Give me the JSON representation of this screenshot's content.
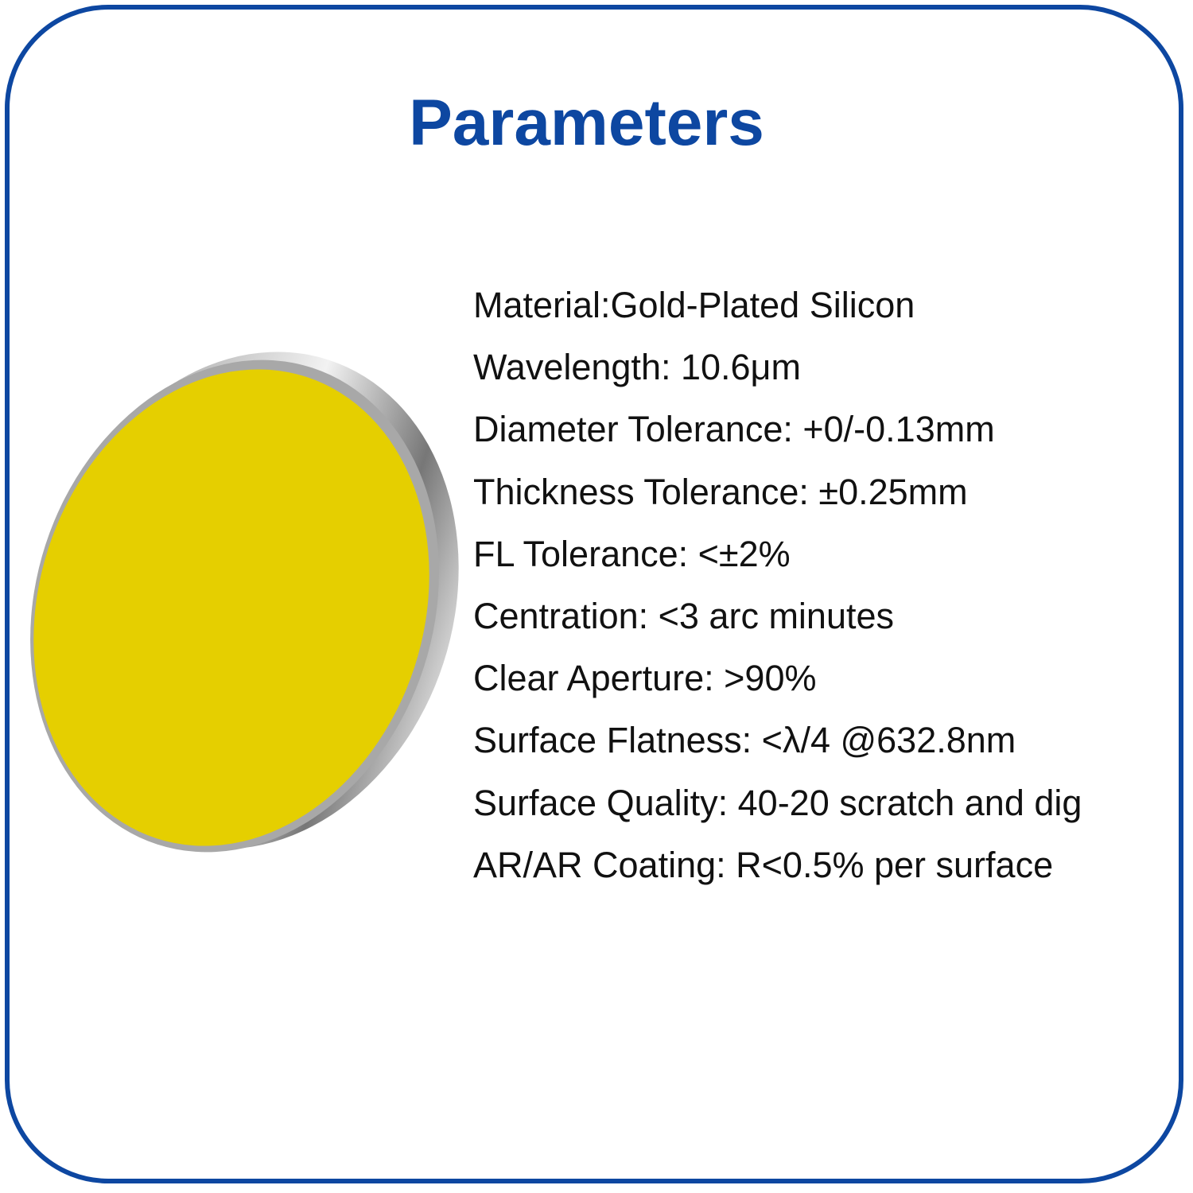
{
  "header": {
    "title": "Parameters"
  },
  "parameters": [
    "Material:Gold-Plated Silicon",
    "Wavelength: 10.6μm",
    "Diameter Tolerance: +0/-0.13mm",
    "Thickness Tolerance: ±0.25mm",
    "FL Tolerance: <±2%",
    "Centration: <3 arc minutes",
    "Clear Aperture: >90%",
    "Surface Flatness: <λ/4 @632.8nm",
    "Surface Quality: 40-20 scratch and dig",
    "AR/AR Coating: R<0.5% per surface"
  ]
}
